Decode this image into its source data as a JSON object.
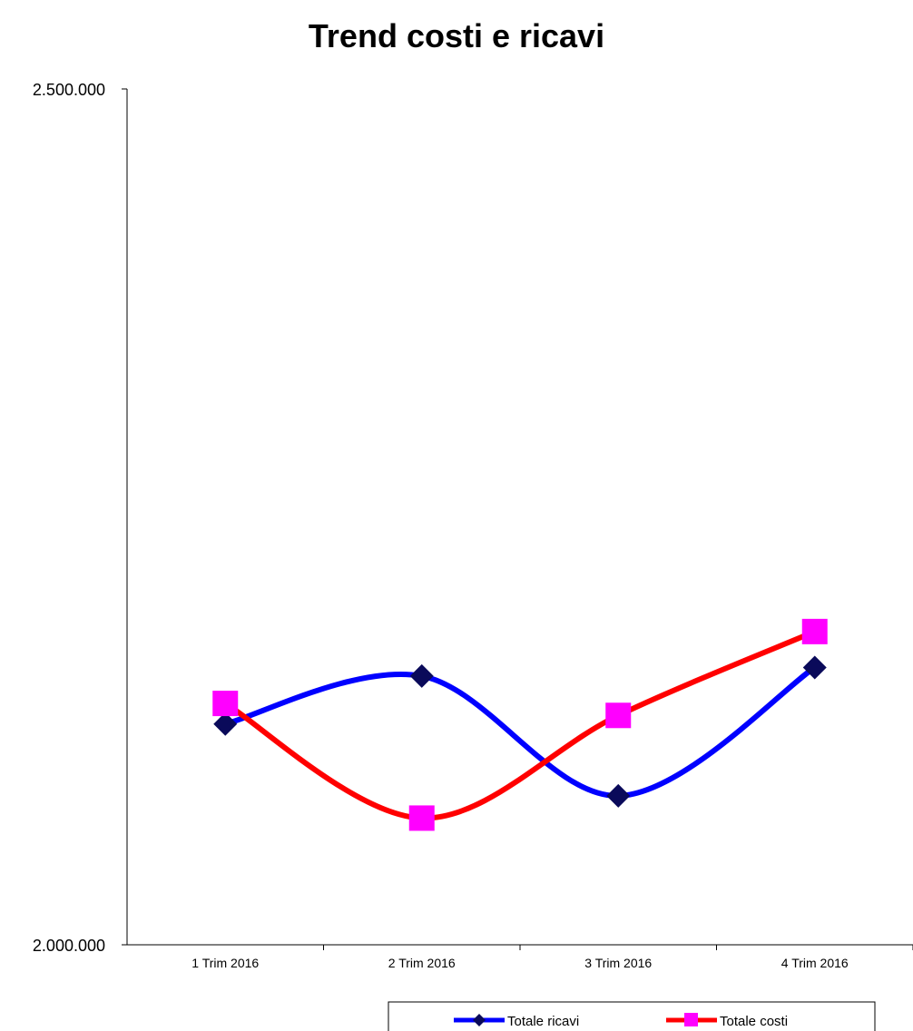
{
  "chart_data": {
    "type": "line",
    "title": "Trend costi e ricavi",
    "xlabel": "",
    "ylabel": "",
    "categories": [
      "1 Trim 2016",
      "2 Trim 2016",
      "3 Trim 2016",
      "4 Trim 2016"
    ],
    "ylim": [
      2000000,
      2500000
    ],
    "y_tick_labels": [
      "2.500.000",
      "2.000.000"
    ],
    "smooth": true,
    "grid": false,
    "legend_position": "bottom-right",
    "series": [
      {
        "name": "Totale ricavi",
        "values": [
          2129000,
          2157000,
          2087000,
          2162000
        ],
        "color": "#0000FF",
        "marker": "diamond",
        "marker_color": "#0A0A5A"
      },
      {
        "name": "Totale costi",
        "values": [
          2141000,
          2074000,
          2134000,
          2183000
        ],
        "color": "#FF0000",
        "marker": "square",
        "marker_color": "#FF00FF"
      }
    ]
  }
}
